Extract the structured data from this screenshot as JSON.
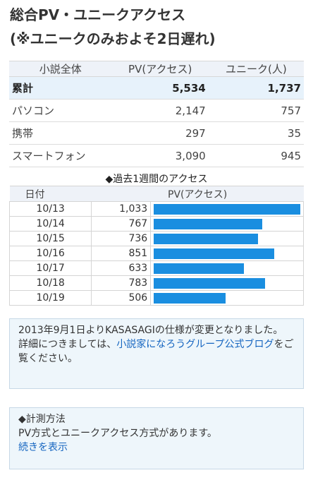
{
  "title_line1": "総合PV・ユニークアクセス",
  "title_line2": "(※ユニークのみおよそ2日遅れ)",
  "summary": {
    "headers": [
      "小説全体",
      "PV(アクセス)",
      "ユニーク(人)"
    ],
    "rows": [
      {
        "label": "累計",
        "pv": "5,534",
        "unique": "1,737",
        "highlight": true
      },
      {
        "label": "パソコン",
        "pv": "2,147",
        "unique": "757"
      },
      {
        "label": "携帯",
        "pv": "297",
        "unique": "35"
      },
      {
        "label": "スマートフォン",
        "pv": "3,090",
        "unique": "945"
      }
    ]
  },
  "weekly": {
    "title": "◆過去1週間のアクセス",
    "headers": [
      "日付",
      "PV(アクセス)"
    ],
    "bar_color": "#1a8ee0",
    "rows": [
      {
        "date": "10/13",
        "pv": "1,033"
      },
      {
        "date": "10/14",
        "pv": "767"
      },
      {
        "date": "10/15",
        "pv": "736"
      },
      {
        "date": "10/16",
        "pv": "851"
      },
      {
        "date": "10/17",
        "pv": "633"
      },
      {
        "date": "10/18",
        "pv": "783"
      },
      {
        "date": "10/19",
        "pv": "506"
      }
    ]
  },
  "notice1": {
    "text": "2013年9月1日よりKASASAGIの仕様が変更となりました。",
    "text2": "詳細につきましては、",
    "link": "小説家になろうグループ公式ブログ",
    "text3": "をご覧ください。"
  },
  "notice2": {
    "heading": "◆計測方法",
    "text": "PV方式とユニークアクセス方式があります。",
    "link": "続きを表示"
  }
}
